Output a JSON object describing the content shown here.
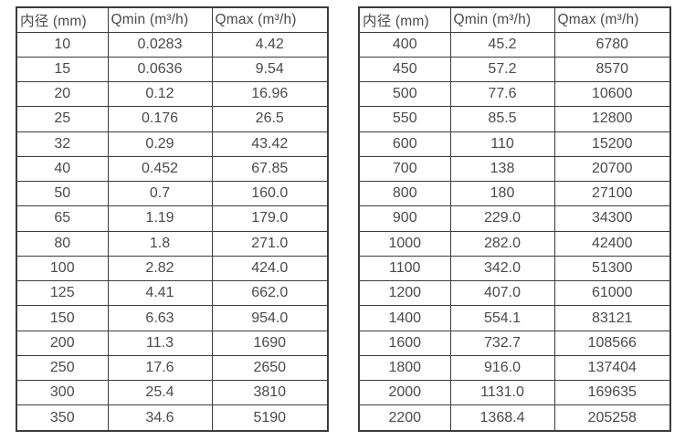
{
  "page": {
    "background": "#ffffff",
    "text_color": "#4a4a4a",
    "border_color": "#3c3c3c"
  },
  "chart_data": [
    {
      "type": "table",
      "headers": [
        "内径 (mm)",
        "Qmin (m³/h)",
        "Qmax (m³/h)"
      ],
      "rows": [
        [
          "10",
          "0.0283",
          "4.42"
        ],
        [
          "15",
          "0.0636",
          "9.54"
        ],
        [
          "20",
          "0.12",
          "16.96"
        ],
        [
          "25",
          "0.176",
          "26.5"
        ],
        [
          "32",
          "0.29",
          "43.42"
        ],
        [
          "40",
          "0.452",
          "67.85"
        ],
        [
          "50",
          "0.7",
          "160.0"
        ],
        [
          "65",
          "1.19",
          "179.0"
        ],
        [
          "80",
          "1.8",
          "271.0"
        ],
        [
          "100",
          "2.82",
          "424.0"
        ],
        [
          "125",
          "4.41",
          "662.0"
        ],
        [
          "150",
          "6.63",
          "954.0"
        ],
        [
          "200",
          "11.3",
          "1690"
        ],
        [
          "250",
          "17.6",
          "2650"
        ],
        [
          "300",
          "25.4",
          "3810"
        ],
        [
          "350",
          "34.6",
          "5190"
        ]
      ]
    },
    {
      "type": "table",
      "headers": [
        "内径 (mm)",
        "Qmin (m³/h)",
        "Qmax (m³/h)"
      ],
      "rows": [
        [
          "400",
          "45.2",
          "6780"
        ],
        [
          "450",
          "57.2",
          "8570"
        ],
        [
          "500",
          "77.6",
          "10600"
        ],
        [
          "550",
          "85.5",
          "12800"
        ],
        [
          "600",
          "110",
          "15200"
        ],
        [
          "700",
          "138",
          "20700"
        ],
        [
          "800",
          "180",
          "27100"
        ],
        [
          "900",
          "229.0",
          "34300"
        ],
        [
          "1000",
          "282.0",
          "42400"
        ],
        [
          "1100",
          "342.0",
          "51300"
        ],
        [
          "1200",
          "407.0",
          "61000"
        ],
        [
          "1400",
          "554.1",
          "83121"
        ],
        [
          "1600",
          "732.7",
          "108566"
        ],
        [
          "1800",
          "916.0",
          "137404"
        ],
        [
          "2000",
          "1131.0",
          "169635"
        ],
        [
          "2200",
          "1368.4",
          "205258"
        ]
      ]
    }
  ]
}
